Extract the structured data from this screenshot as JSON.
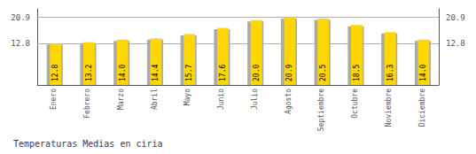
{
  "chart_data": {
    "type": "bar",
    "title": "Temperaturas Medias en ciria",
    "categories": [
      "Enero",
      "Febrero",
      "Marzo",
      "Abril",
      "Mayo",
      "Junio",
      "Julio",
      "Agosto",
      "Septiembre",
      "Octubre",
      "Noviembre",
      "Diciembre"
    ],
    "series": [
      {
        "color": "#AAAAAA",
        "values": [
          12.5,
          12.9,
          13.6,
          14.0,
          15.3,
          17.2,
          19.6,
          20.5,
          20.1,
          18.1,
          15.9,
          13.6
        ]
      },
      {
        "color": "#FFD700",
        "values": [
          12.8,
          13.2,
          14.0,
          14.4,
          15.7,
          17.6,
          20.0,
          20.9,
          20.5,
          18.5,
          16.3,
          14.0
        ],
        "value_labels": [
          "12.8",
          "13.2",
          "14.0",
          "14.4",
          "15.7",
          "17.6",
          "20.0",
          "20.9",
          "20.5",
          "18.5",
          "16.3",
          "14.0"
        ],
        "data_labels": true
      }
    ],
    "ylim": [
      0,
      23.5
    ],
    "yticks": [
      12.8,
      20.9
    ],
    "y2lim": [
      0,
      23.5
    ],
    "y2ticks": [
      12.8,
      20.9
    ],
    "grid": true
  }
}
